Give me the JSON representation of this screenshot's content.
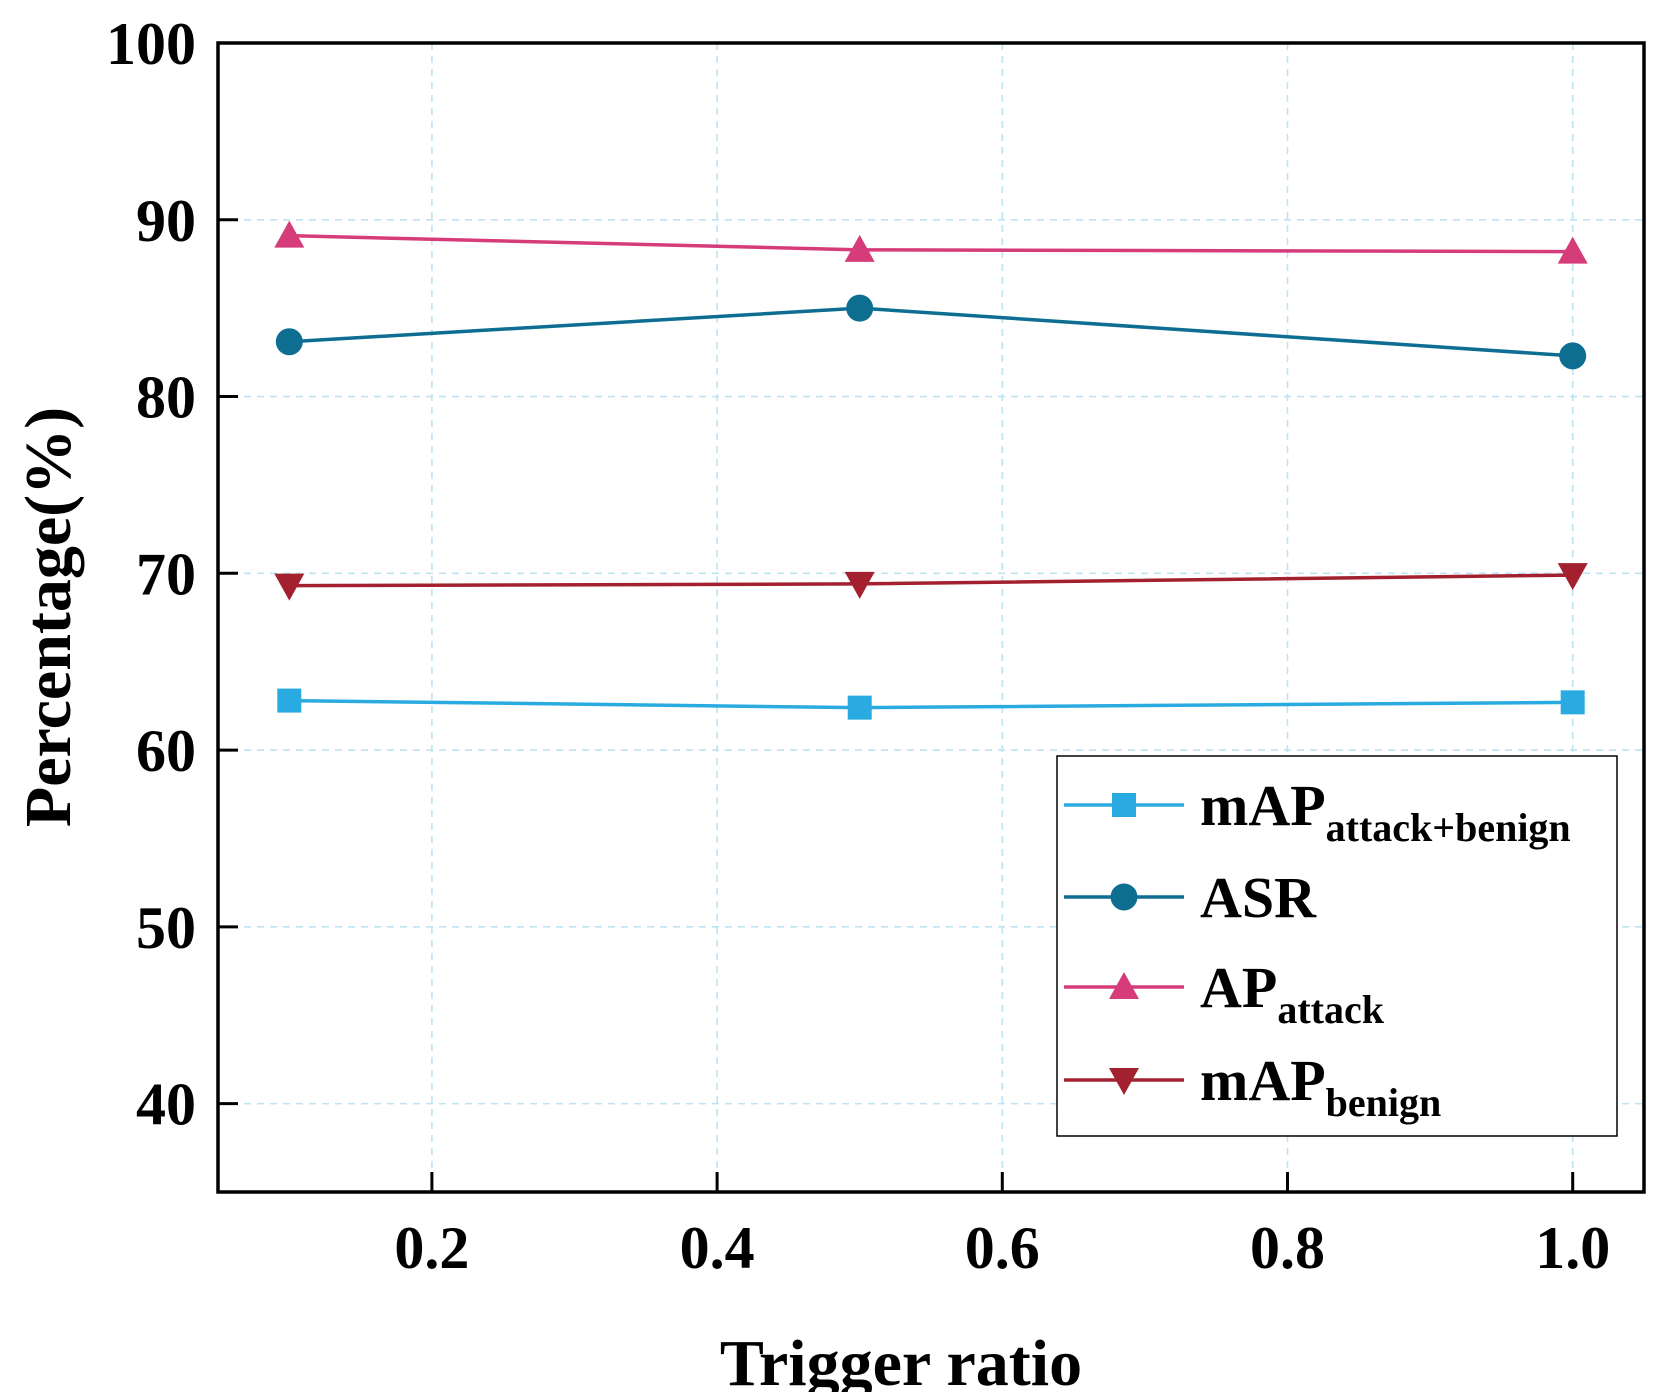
{
  "chart_data": {
    "type": "line",
    "title": "",
    "xlabel": "Trigger ratio",
    "ylabel": "Percentage(%)",
    "xlim": [
      0.05,
      1.05
    ],
    "ylim": [
      35,
      100
    ],
    "x_ticks": [
      "0.2",
      "0.4",
      "0.6",
      "0.8",
      "1.0"
    ],
    "x_tick_values": [
      0.2,
      0.4,
      0.6,
      0.8,
      1.0
    ],
    "y_ticks": [
      "40",
      "50",
      "60",
      "70",
      "80",
      "90",
      "100"
    ],
    "y_tick_values": [
      40,
      50,
      60,
      70,
      80,
      90,
      100
    ],
    "grid": true,
    "legend_position": "bottom-right",
    "x": [
      0.1,
      0.5,
      1.0
    ],
    "series": [
      {
        "base": "mAP",
        "sub": "attack+benign",
        "color": "#29abe2",
        "marker": "square",
        "values": [
          62.8,
          62.4,
          62.7
        ]
      },
      {
        "base": "ASR",
        "sub": "",
        "color": "#0e6e92",
        "marker": "circle",
        "values": [
          83.1,
          85.0,
          82.3
        ]
      },
      {
        "base": "AP",
        "sub": "attack",
        "color": "#d63b7a",
        "marker": "triangle-up",
        "values": [
          89.1,
          88.3,
          88.2
        ]
      },
      {
        "base": "mAP",
        "sub": "benign",
        "color": "#a3212e",
        "marker": "triangle-down",
        "values": [
          69.3,
          69.4,
          69.9
        ]
      }
    ]
  }
}
